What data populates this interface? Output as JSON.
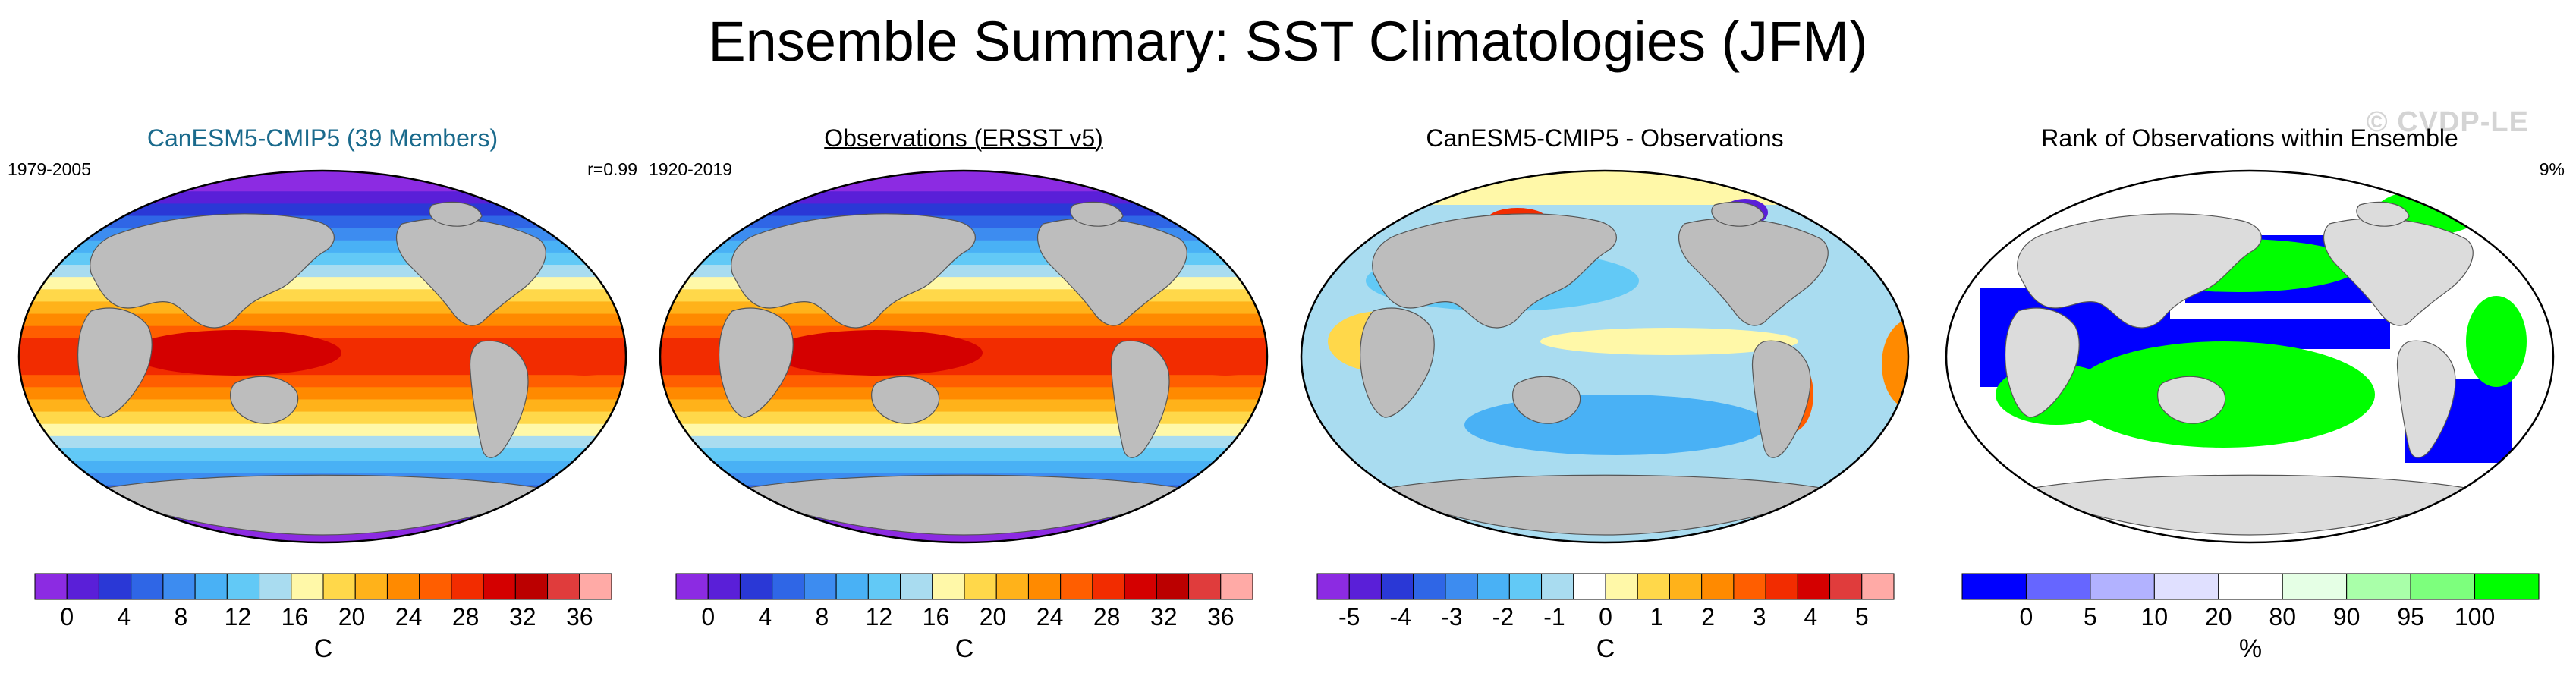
{
  "title": "Ensemble Summary: SST Climatologies (JFM)",
  "watermark": "© CVDP-LE",
  "colors": {
    "land": "#bdbdbd",
    "sst_scale": [
      "#8c2be2",
      "#5a1fd8",
      "#2a38d6",
      "#2f66e6",
      "#3d8cf0",
      "#49b1f5",
      "#62c9f6",
      "#a9dcf0",
      "#fff8a8",
      "#ffd84a",
      "#ffb21a",
      "#ff8a00",
      "#ff5e00",
      "#f22c00",
      "#d40000",
      "#bb0000",
      "#e03c3c",
      "#ffaaa6"
    ],
    "diff_scale": [
      "#8c2be2",
      "#5a1fd8",
      "#2a38d6",
      "#2f66e6",
      "#3d8cf0",
      "#49b1f5",
      "#62c9f6",
      "#a9dcf0",
      "#ffffff",
      "#fff8a8",
      "#ffd84a",
      "#ffb21a",
      "#ff8a00",
      "#ff5e00",
      "#f22c00",
      "#d40000",
      "#e03c3c",
      "#ffaaa6"
    ],
    "rank_scale": [
      "#0000ff",
      "#6666ff",
      "#b2b2ff",
      "#e0e0ff",
      "#ffffff",
      "#e5ffe5",
      "#a9ffa9",
      "#7dff7d",
      "#00ff00"
    ]
  },
  "panels": [
    {
      "title": "CanESM5-CMIP5 (39 Members)",
      "left_text": "1979-2005",
      "right_text": "r=0.99",
      "map_style": "sst"
    },
    {
      "title": "Observations (ERSST v5)",
      "left_text": "1920-2019",
      "right_text": "",
      "map_style": "sst"
    },
    {
      "title": "CanESM5-CMIP5 - Observations",
      "left_text": "",
      "right_text": "",
      "map_style": "diff"
    },
    {
      "title": "Rank of Observations within Ensemble",
      "left_text": "",
      "right_text": "9%",
      "map_style": "rank"
    }
  ],
  "chart_data": [
    {
      "type": "heatmap",
      "title": "CanESM5-CMIP5 (39 Members)",
      "period": "1979-2005",
      "pattern_correlation": "r=0.99",
      "colorbar": {
        "label": "C",
        "tick_labels": [
          "0",
          "4",
          "8",
          "12",
          "16",
          "20",
          "24",
          "28",
          "32",
          "36"
        ],
        "range": [
          0,
          36
        ]
      },
      "field": "SST climatology JFM",
      "description_values": {
        "warm_pool_max_C": 30,
        "polar_min_C": 0
      }
    },
    {
      "type": "heatmap",
      "title": "Observations (ERSST v5)",
      "period": "1920-2019",
      "colorbar": {
        "label": "C",
        "tick_labels": [
          "0",
          "4",
          "8",
          "12",
          "16",
          "20",
          "24",
          "28",
          "32",
          "36"
        ],
        "range": [
          0,
          36
        ]
      },
      "field": "SST climatology JFM"
    },
    {
      "type": "heatmap",
      "title": "CanESM5-CMIP5 - Observations",
      "colorbar": {
        "label": "C",
        "tick_labels": [
          "-5",
          "-4",
          "-3",
          "-2",
          "-1",
          "0",
          "1",
          "2",
          "3",
          "4",
          "5"
        ],
        "range": [
          -5,
          5
        ]
      },
      "field": "SST difference"
    },
    {
      "type": "heatmap",
      "title": "Rank of Observations within Ensemble",
      "summary": "9%",
      "colorbar": {
        "label": "%",
        "tick_labels": [
          "0",
          "5",
          "10",
          "20",
          "80",
          "90",
          "95",
          "100"
        ],
        "range": [
          0,
          100
        ]
      },
      "field": "Rank"
    }
  ]
}
